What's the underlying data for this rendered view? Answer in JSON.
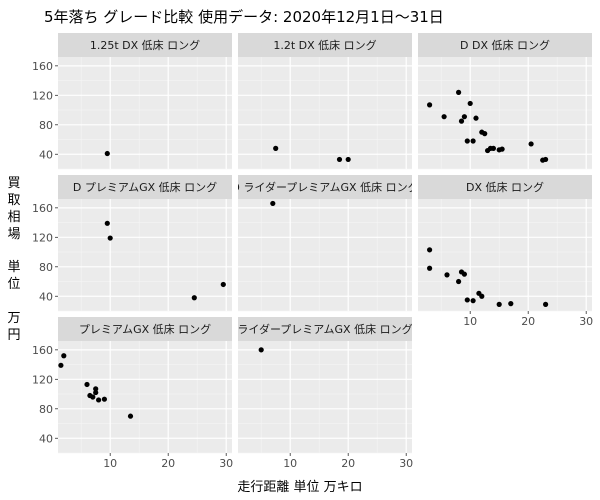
{
  "chart_data": {
    "type": "scatter",
    "title": "5年落ち グレード比較 使用データ: 2020年12月1日〜31日",
    "xlabel": "走行距離 単位 万キロ",
    "ylabel": "買取相場 単位 万円",
    "xlim": [
      1,
      31
    ],
    "ylim": [
      20,
      172
    ],
    "x_ticks": [
      10,
      20,
      30
    ],
    "y_ticks": [
      40,
      80,
      120,
      160
    ],
    "grid": true,
    "facets": [
      {
        "name": "1.25t DX 低床 ロング",
        "points": [
          [
            9.5,
            41
          ]
        ]
      },
      {
        "name": "1.2t DX 低床 ロング",
        "points": [
          [
            7.5,
            48
          ],
          [
            18.5,
            33
          ],
          [
            20,
            33
          ]
        ]
      },
      {
        "name": "D DX 低床 ロング",
        "points": [
          [
            3,
            107
          ],
          [
            5.5,
            91
          ],
          [
            8,
            124
          ],
          [
            8.5,
            85
          ],
          [
            9,
            91
          ],
          [
            9.5,
            58
          ],
          [
            10,
            109
          ],
          [
            10.5,
            58
          ],
          [
            11,
            89
          ],
          [
            12,
            70
          ],
          [
            12.5,
            68
          ],
          [
            13,
            45
          ],
          [
            13.5,
            48
          ],
          [
            14,
            48
          ],
          [
            15,
            46
          ],
          [
            15.5,
            47
          ],
          [
            20.5,
            54
          ],
          [
            22.5,
            32
          ],
          [
            23,
            33
          ]
        ]
      },
      {
        "name": "D プレミアムGX 低床 ロング",
        "points": [
          [
            9.5,
            139
          ],
          [
            10,
            119
          ],
          [
            24.5,
            38
          ],
          [
            29.5,
            56
          ]
        ]
      },
      {
        "name": "D ライダープレミアムGX 低床 ロング",
        "points": [
          [
            7,
            166
          ]
        ]
      },
      {
        "name": "DX 低床 ロング",
        "points": [
          [
            3,
            103
          ],
          [
            3,
            78
          ],
          [
            6,
            69
          ],
          [
            8,
            60
          ],
          [
            8.5,
            73
          ],
          [
            9,
            70
          ],
          [
            9.5,
            35
          ],
          [
            10.5,
            34
          ],
          [
            11.5,
            44
          ],
          [
            12,
            40
          ],
          [
            15,
            29
          ],
          [
            17,
            30
          ],
          [
            23,
            29
          ]
        ]
      },
      {
        "name": "プレミアムGX 低床 ロング",
        "points": [
          [
            1.5,
            139
          ],
          [
            2,
            152
          ],
          [
            6,
            113
          ],
          [
            6.5,
            98
          ],
          [
            7,
            96
          ],
          [
            7.5,
            107
          ],
          [
            7.5,
            102
          ],
          [
            8,
            92
          ],
          [
            9,
            93
          ],
          [
            13.5,
            70
          ]
        ]
      },
      {
        "name": "ライダープレミアムGX 低床 ロング",
        "points": [
          [
            5,
            160
          ]
        ]
      }
    ]
  }
}
